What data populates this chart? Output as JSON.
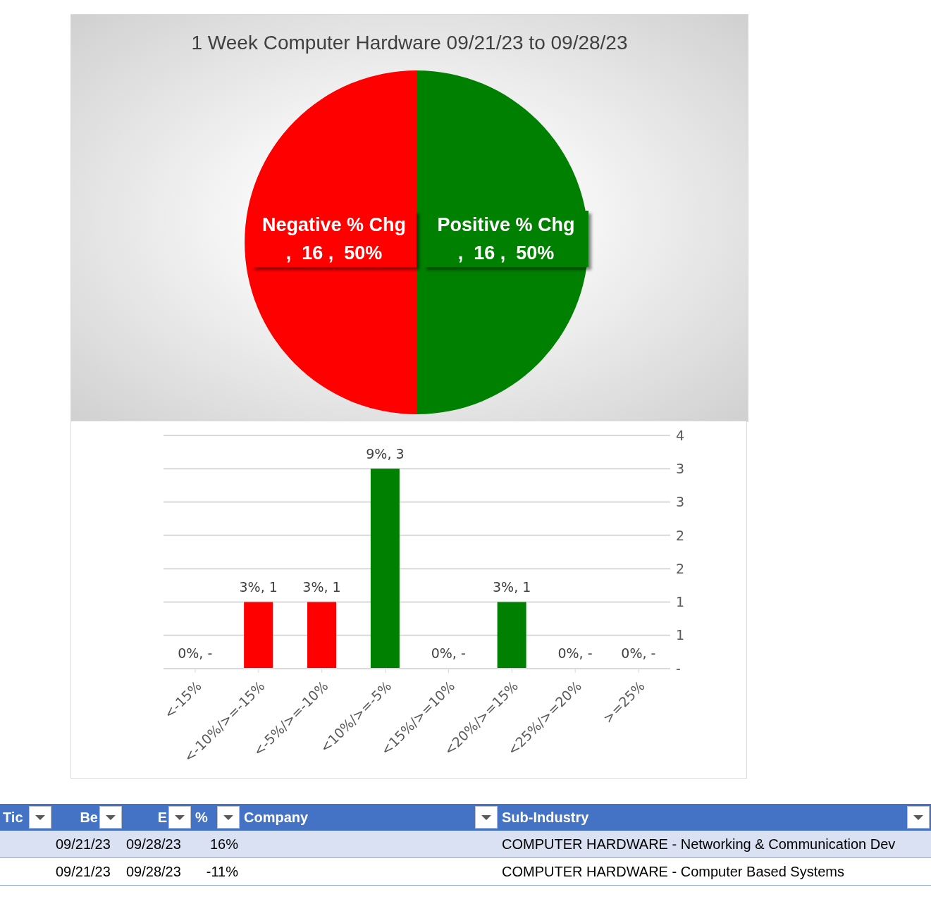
{
  "chart_data": [
    {
      "type": "pie",
      "title": "1 Week Computer Hardware 09/21/23 to 09/28/23",
      "categories": [
        "Negative % Chg",
        "Positive % Chg"
      ],
      "values": [
        16,
        16
      ],
      "colors": [
        "#ff0000",
        "#008000"
      ],
      "value_labels": [
        ",  16 ,  50%",
        ",  16 ,  50%"
      ]
    },
    {
      "type": "bar",
      "categories": [
        "<-15%",
        "<-10%/>=-15%",
        "<-5%/>=-10%",
        "<10%/>=-5%",
        "<15%/>=10%",
        "<20%/>=15%",
        "<25%/>=20%",
        ">=25%"
      ],
      "values": [
        0,
        1,
        1,
        3,
        0,
        1,
        0,
        0
      ],
      "colors": [
        "#ff0000",
        "#ff0000",
        "#ff0000",
        "#008000",
        "#008000",
        "#008000",
        "#008000",
        "#008000"
      ],
      "value_labels": [
        "0%,  -",
        "3%,  1",
        "3%,  1",
        "9%,  3",
        "0%,  -",
        "3%,  1",
        "0%,  -",
        "0%,  -"
      ],
      "ylim": [
        0,
        3.5
      ],
      "yticks": [
        {
          "value": 0,
          "label": "-"
        },
        {
          "value": 0.5,
          "label": "1"
        },
        1,
        {
          "value": 1.5,
          "label": "2"
        },
        2,
        {
          "value": 2.5,
          "label": "3"
        },
        3,
        {
          "value": 3.5,
          "label": "4"
        }
      ],
      "grid": "y"
    },
    {
      "type": "other",
      "categories": [
        "Tic",
        "Be",
        "E",
        "%",
        "Company",
        "Sub-Industry"
      ],
      "annotations": [
        null,
        "09/21/23",
        "09/28/23",
        "16%",
        null,
        "COMPUTER HARDWARE - Networking & Communication Dev",
        null,
        "09/21/23",
        "09/28/23",
        "-11%",
        null,
        "COMPUTER HARDWARE - Computer Based Systems"
      ]
    }
  ]
}
